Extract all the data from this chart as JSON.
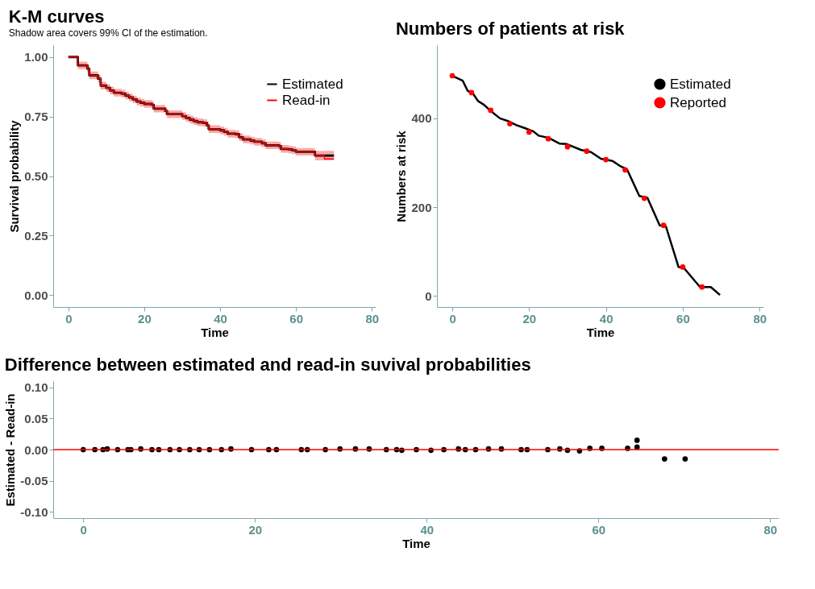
{
  "chart_data": [
    {
      "type": "step",
      "title": "K-M curves",
      "subtitle": "Shadow area covers 99% CI of the estimation.",
      "xlabel": "Time",
      "ylabel": "Survival probability",
      "xlim": [
        -4,
        81
      ],
      "xticks": [
        0,
        20,
        40,
        60,
        80
      ],
      "ylim": [
        -0.05,
        1.05
      ],
      "yticks": [
        {
          "value": 0,
          "label": "0.00"
        },
        {
          "value": 0.25,
          "label": "0.25"
        },
        {
          "value": 0.5,
          "label": "0.50"
        },
        {
          "value": 0.75,
          "label": "0.75"
        },
        {
          "value": 1,
          "label": "1.00"
        }
      ],
      "legend": "top right",
      "series": [
        {
          "name": "Estimated",
          "color": "#000000",
          "x": [
            0,
            2.5,
            5,
            5.5,
            7.8,
            8.5,
            10,
            11,
            12,
            14,
            15,
            16,
            17,
            18,
            19,
            20,
            22,
            22.5,
            25.5,
            26,
            28.5,
            30,
            31,
            32,
            33,
            34,
            35.5,
            36.5,
            37,
            40,
            41,
            42,
            44,
            45,
            46,
            48,
            49,
            51,
            52,
            55.5,
            56,
            58,
            59,
            60,
            64.5,
            65,
            70
          ],
          "values": [
            1,
            0.965,
            0.951,
            0.923,
            0.909,
            0.88,
            0.87,
            0.859,
            0.85,
            0.846,
            0.838,
            0.83,
            0.822,
            0.813,
            0.808,
            0.803,
            0.799,
            0.783,
            0.774,
            0.76,
            0.76,
            0.752,
            0.744,
            0.737,
            0.731,
            0.726,
            0.723,
            0.713,
            0.697,
            0.692,
            0.686,
            0.678,
            0.676,
            0.663,
            0.654,
            0.649,
            0.644,
            0.638,
            0.629,
            0.626,
            0.614,
            0.612,
            0.608,
            0.602,
            0.602,
            0.586,
            0.586
          ]
        },
        {
          "name": "Read-in",
          "color": "#ff0000",
          "x": [
            0,
            2.5,
            5,
            5.5,
            7.8,
            8.5,
            10,
            11,
            12,
            14,
            15,
            16,
            17,
            18,
            19,
            20,
            22,
            22.5,
            25.5,
            26,
            28.5,
            30,
            31,
            32,
            33,
            34,
            35.5,
            36.5,
            37,
            40,
            41,
            42,
            44,
            45,
            46,
            48,
            49,
            51,
            52,
            55.5,
            56,
            58,
            59,
            60,
            64.5,
            65,
            67.5,
            70
          ],
          "values": [
            1,
            0.965,
            0.951,
            0.923,
            0.909,
            0.88,
            0.87,
            0.859,
            0.85,
            0.846,
            0.838,
            0.83,
            0.822,
            0.813,
            0.808,
            0.803,
            0.799,
            0.783,
            0.774,
            0.76,
            0.76,
            0.752,
            0.744,
            0.737,
            0.731,
            0.726,
            0.723,
            0.713,
            0.697,
            0.692,
            0.686,
            0.678,
            0.676,
            0.663,
            0.654,
            0.649,
            0.644,
            0.638,
            0.629,
            0.626,
            0.614,
            0.612,
            0.608,
            0.602,
            0.602,
            0.586,
            0.572,
            0.572
          ],
          "lower": [
            null,
            0.949,
            0.935,
            0.907,
            0.893,
            0.864,
            0.854,
            0.843,
            0.834,
            0.83,
            0.822,
            0.814,
            0.806,
            0.797,
            0.792,
            0.787,
            0.783,
            0.767,
            0.758,
            0.744,
            0.744,
            0.736,
            0.728,
            0.721,
            0.715,
            0.71,
            0.707,
            0.697,
            0.681,
            0.676,
            0.67,
            0.662,
            0.66,
            0.647,
            0.638,
            0.633,
            0.628,
            0.622,
            0.613,
            0.61,
            0.598,
            0.596,
            0.592,
            0.586,
            0.586,
            0.566,
            0.566,
            0.566
          ],
          "upper": [
            null,
            0.981,
            0.967,
            0.939,
            0.925,
            0.896,
            0.886,
            0.875,
            0.866,
            0.862,
            0.854,
            0.846,
            0.838,
            0.829,
            0.824,
            0.819,
            0.815,
            0.799,
            0.79,
            0.776,
            0.776,
            0.768,
            0.76,
            0.753,
            0.747,
            0.742,
            0.739,
            0.729,
            0.713,
            0.708,
            0.702,
            0.694,
            0.692,
            0.679,
            0.67,
            0.665,
            0.66,
            0.654,
            0.645,
            0.642,
            0.63,
            0.628,
            0.624,
            0.618,
            0.618,
            0.606,
            0.606,
            0.606
          ]
        }
      ]
    },
    {
      "type": "line",
      "title": "Numbers of patients at risk",
      "xlabel": "Time",
      "ylabel": "Numbers at risk",
      "xlim": [
        -4,
        81
      ],
      "xticks": [
        0,
        20,
        40,
        60,
        80
      ],
      "ylim": [
        -25,
        565
      ],
      "yticks": [
        0,
        200,
        400
      ],
      "legend": "top right",
      "series": [
        {
          "name": "Estimated",
          "color": "#000000",
          "x": [
            0,
            2.7,
            4,
            5.3,
            6.7,
            8.2,
            10.1,
            12.4,
            14.5,
            16.6,
            18.9,
            21,
            22.5,
            25.1,
            28,
            29.8,
            33.5,
            36.1,
            38.7,
            41.7,
            43.6,
            45.5,
            48.7,
            50.8,
            54,
            55.6,
            58.9,
            60.2,
            64.5,
            67.3,
            69.7
          ],
          "values": [
            496,
            485,
            462,
            457,
            439,
            431,
            416,
            400,
            394,
            385,
            378,
            371,
            361,
            356,
            343,
            342,
            329,
            324,
            309,
            304,
            293,
            285,
            225,
            221,
            159,
            157,
            65,
            64,
            20,
            20,
            2
          ]
        },
        {
          "name": "Reported",
          "type": "scatter",
          "marker": "circle",
          "color": "#ff0000",
          "x": [
            0,
            5,
            10,
            15,
            20,
            25,
            30,
            35,
            40,
            45,
            50,
            55,
            60,
            65
          ],
          "values": [
            496,
            458,
            418,
            388,
            369,
            354,
            336,
            326,
            307,
            284,
            220,
            159,
            65,
            20
          ]
        }
      ]
    },
    {
      "type": "scatter",
      "title": "Difference between estimated and read-in suvival probabilities",
      "xlabel": "Time",
      "ylabel": "Estimated - Read-in",
      "xlim": [
        -3.5,
        81
      ],
      "xticks": [
        0,
        20,
        40,
        60,
        80
      ],
      "ylim": [
        -0.11,
        0.11
      ],
      "yticks": [
        {
          "value": -0.1,
          "label": "-0.10"
        },
        {
          "value": -0.05,
          "label": "-0.05"
        },
        {
          "value": 0,
          "label": "0.00"
        },
        {
          "value": 0.05,
          "label": "0.05"
        },
        {
          "value": 0.1,
          "label": "0.10"
        }
      ],
      "marker": "circle",
      "color": "#000000",
      "x": [
        0,
        1.35,
        2.3,
        2.8,
        4,
        5.2,
        5.55,
        6.7,
        8,
        8.8,
        10.1,
        11.2,
        12.4,
        13.5,
        14.7,
        16.1,
        17.2,
        19.6,
        21.6,
        22.5,
        25.4,
        26.1,
        28.2,
        29.9,
        31.7,
        33.3,
        35.3,
        36.5,
        37.1,
        38.8,
        40.5,
        42,
        43.7,
        44.5,
        45.7,
        47.2,
        48.7,
        51,
        51.7,
        54.1,
        55.5,
        56.4,
        57.8,
        59,
        60.4,
        63.4,
        64.5,
        64.5,
        67.7,
        70.1
      ],
      "values": [
        0,
        0,
        0,
        0.001,
        0,
        0,
        0,
        0.001,
        0,
        0,
        0,
        0,
        0,
        0,
        0,
        0,
        0.001,
        0,
        0,
        0,
        0,
        0,
        0,
        0.001,
        0.001,
        0.001,
        0,
        0,
        -0.001,
        0,
        -0.001,
        0,
        0.001,
        0,
        0,
        0.001,
        0.001,
        0,
        0,
        0,
        0.001,
        -0.001,
        -0.002,
        0.002,
        0.002,
        0.002,
        0.004,
        0.015,
        -0.015,
        -0.015
      ],
      "ref_lines": [
        {
          "axis": "y",
          "value": 0,
          "color": "#ff0000"
        }
      ]
    }
  ]
}
